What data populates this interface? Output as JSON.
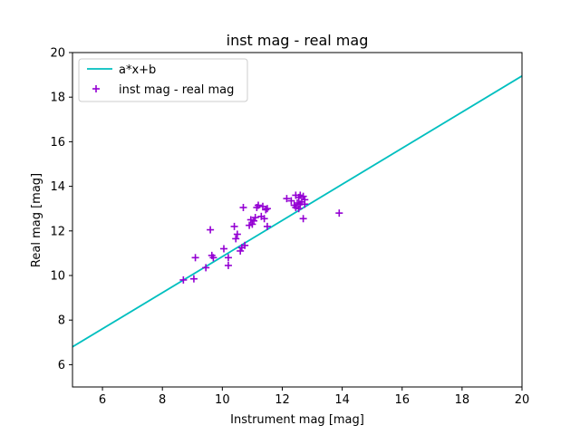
{
  "chart_data": {
    "type": "scatter",
    "title": "inst mag - real mag",
    "xlabel": "Instrument mag [mag]",
    "ylabel": "Real mag [mag]",
    "xlim": [
      5,
      20
    ],
    "ylim": [
      5,
      20
    ],
    "x_ticks": [
      6,
      8,
      10,
      12,
      14,
      16,
      18,
      20
    ],
    "y_ticks": [
      6,
      8,
      10,
      12,
      14,
      16,
      18,
      20
    ],
    "grid": false,
    "legend_position": "top-left",
    "fit_line": {
      "name": "a*x+b",
      "color": "#00bfbf",
      "x": [
        5,
        20
      ],
      "y": [
        6.8,
        18.95
      ]
    },
    "series": [
      {
        "name": "inst mag - real mag",
        "marker": "plus",
        "color": "#9400d3",
        "points": [
          [
            8.7,
            9.8
          ],
          [
            9.05,
            9.85
          ],
          [
            9.1,
            10.8
          ],
          [
            9.45,
            10.35
          ],
          [
            9.6,
            12.05
          ],
          [
            9.65,
            10.9
          ],
          [
            9.7,
            10.8
          ],
          [
            10.05,
            11.2
          ],
          [
            10.2,
            10.45
          ],
          [
            10.2,
            10.8
          ],
          [
            10.4,
            12.2
          ],
          [
            10.45,
            11.65
          ],
          [
            10.5,
            11.85
          ],
          [
            10.6,
            11.1
          ],
          [
            10.65,
            11.25
          ],
          [
            10.7,
            13.05
          ],
          [
            10.75,
            11.35
          ],
          [
            10.9,
            12.25
          ],
          [
            10.95,
            12.5
          ],
          [
            11.0,
            12.3
          ],
          [
            11.05,
            12.45
          ],
          [
            11.1,
            12.6
          ],
          [
            11.15,
            13.05
          ],
          [
            11.2,
            13.15
          ],
          [
            11.3,
            12.65
          ],
          [
            11.35,
            13.1
          ],
          [
            11.4,
            12.55
          ],
          [
            11.45,
            12.95
          ],
          [
            11.5,
            12.2
          ],
          [
            11.5,
            13.0
          ],
          [
            12.15,
            13.45
          ],
          [
            12.3,
            13.35
          ],
          [
            12.4,
            13.15
          ],
          [
            12.45,
            13.05
          ],
          [
            12.45,
            13.6
          ],
          [
            12.5,
            13.25
          ],
          [
            12.55,
            13.5
          ],
          [
            12.55,
            13.0
          ],
          [
            12.6,
            13.2
          ],
          [
            12.6,
            13.6
          ],
          [
            12.65,
            13.3
          ],
          [
            12.7,
            13.55
          ],
          [
            12.7,
            12.55
          ],
          [
            12.75,
            13.4
          ],
          [
            12.75,
            13.2
          ],
          [
            13.9,
            12.8
          ]
        ]
      }
    ]
  }
}
